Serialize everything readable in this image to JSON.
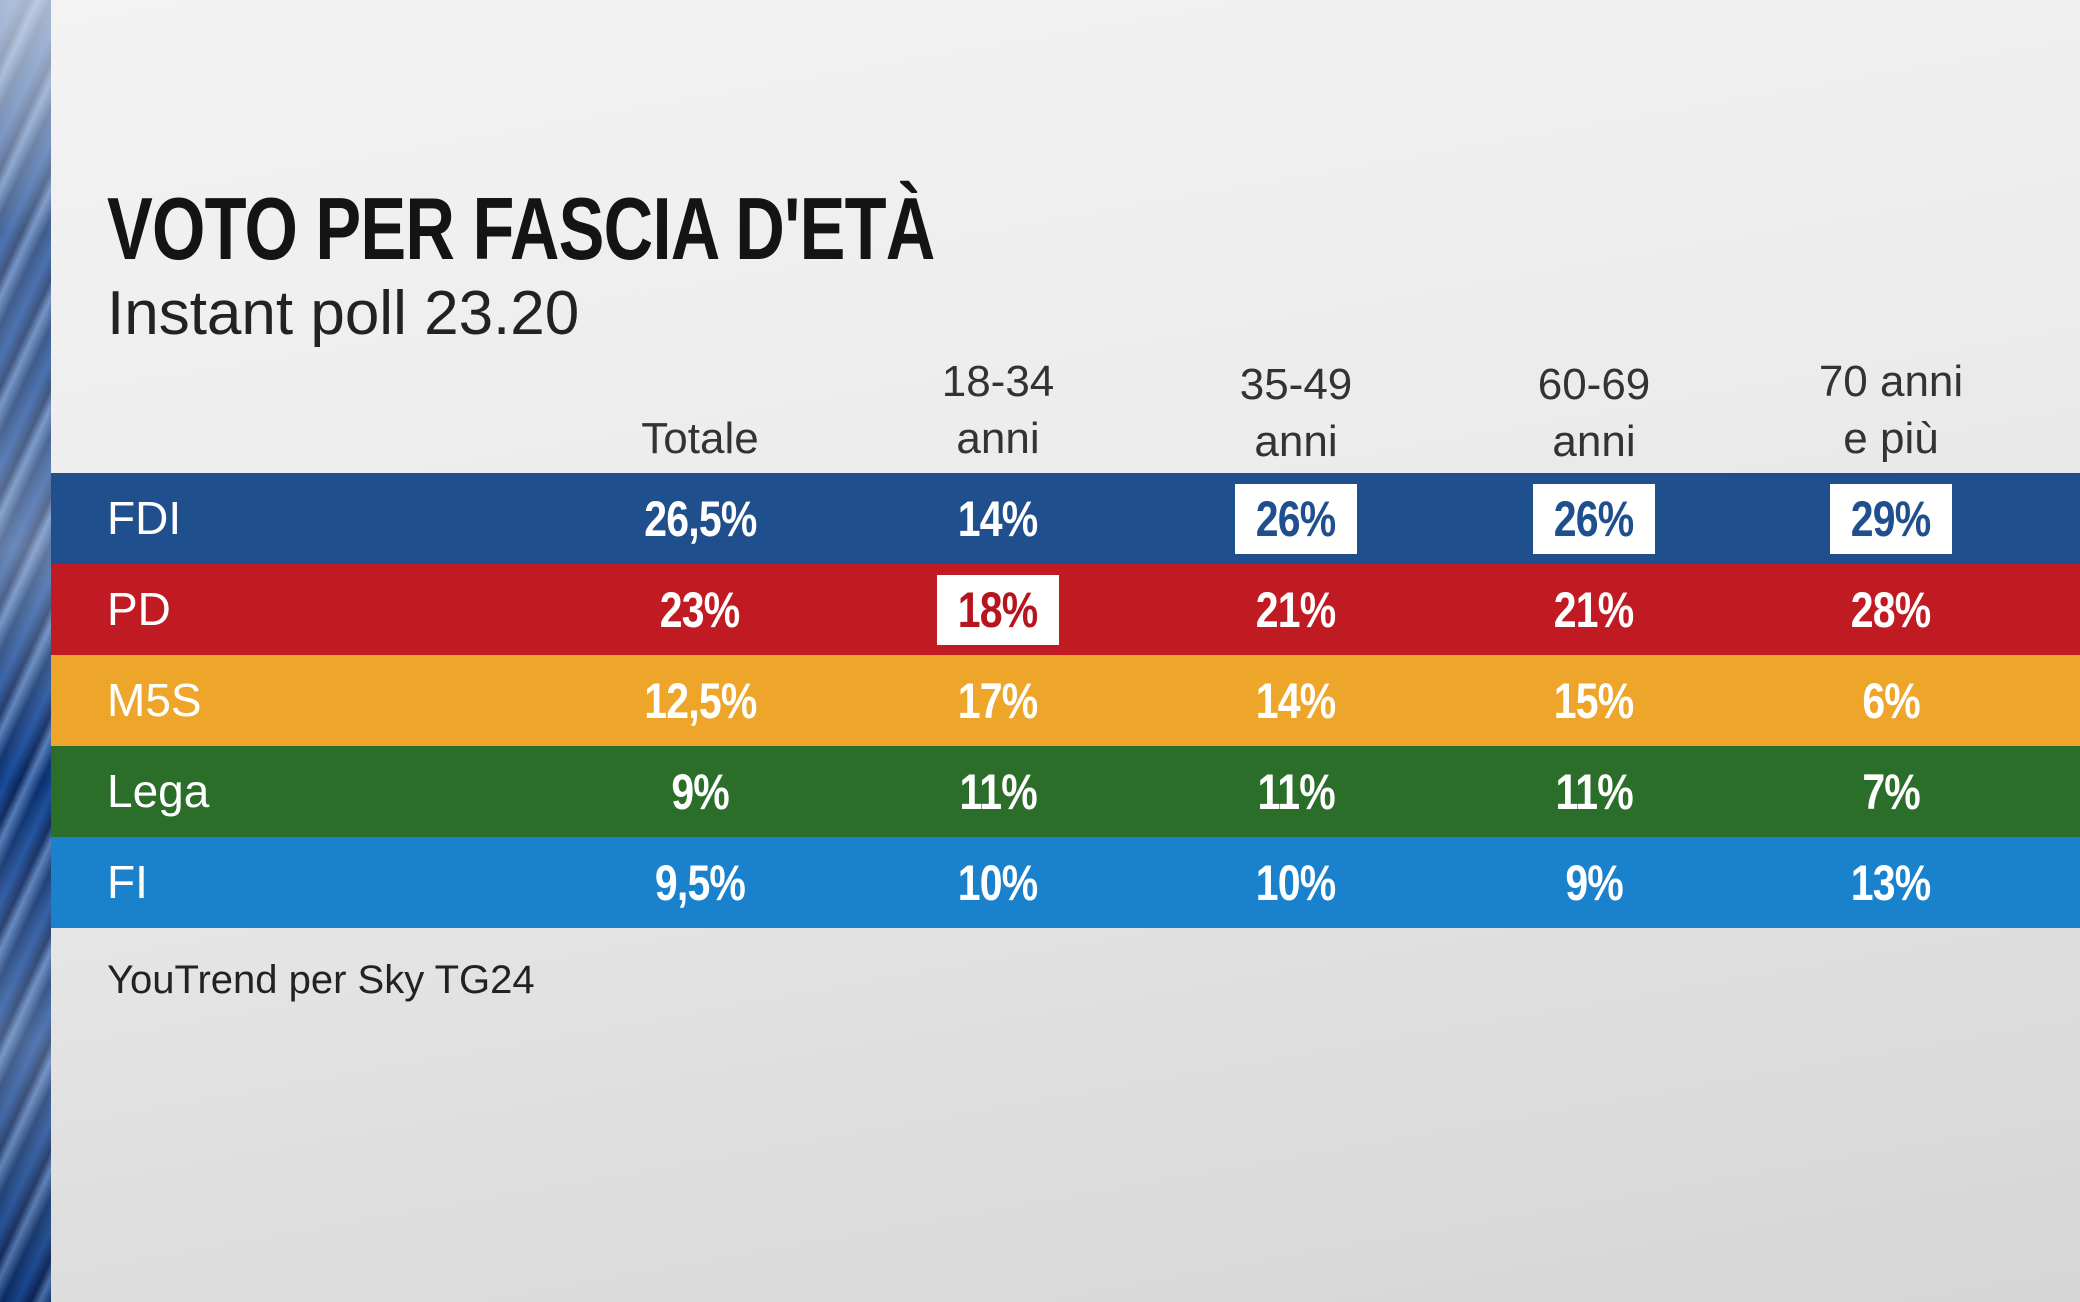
{
  "chart_data": {
    "type": "table",
    "title": "VOTO PER FASCIA D'ETÀ",
    "subtitle": "Instant poll 23.20",
    "source": "YouTrend per Sky TG24",
    "columns": [
      "Totale",
      "18-34\nanni",
      "35-49\nanni",
      "60-69\nanni",
      "70 anni\ne più"
    ],
    "rows": [
      {
        "party": "FDI",
        "color": "#1f4f8c",
        "values": [
          "26,5%",
          "14%",
          "26%",
          "26%",
          "29%"
        ],
        "highlight": [
          false,
          false,
          true,
          true,
          true
        ],
        "highlight_text_color": "#1f4f8c"
      },
      {
        "party": "PD",
        "color": "#c01a22",
        "values": [
          "23%",
          "18%",
          "21%",
          "21%",
          "28%"
        ],
        "highlight": [
          false,
          true,
          false,
          false,
          false
        ],
        "highlight_text_color": "#b8141d"
      },
      {
        "party": "M5S",
        "color": "#eda52a",
        "values": [
          "12,5%",
          "17%",
          "14%",
          "15%",
          "6%"
        ],
        "highlight": [
          false,
          false,
          false,
          false,
          false
        ],
        "highlight_text_color": "#eda52a"
      },
      {
        "party": "Lega",
        "color": "#2a6e2a",
        "values": [
          "9%",
          "11%",
          "11%",
          "11%",
          "7%"
        ],
        "highlight": [
          false,
          false,
          false,
          false,
          false
        ],
        "highlight_text_color": "#2a6e2a"
      },
      {
        "party": "FI",
        "color": "#1a82cc",
        "values": [
          "9,5%",
          "10%",
          "10%",
          "9%",
          "13%"
        ],
        "highlight": [
          false,
          false,
          false,
          false,
          false
        ],
        "highlight_text_color": "#1a82cc"
      }
    ]
  }
}
